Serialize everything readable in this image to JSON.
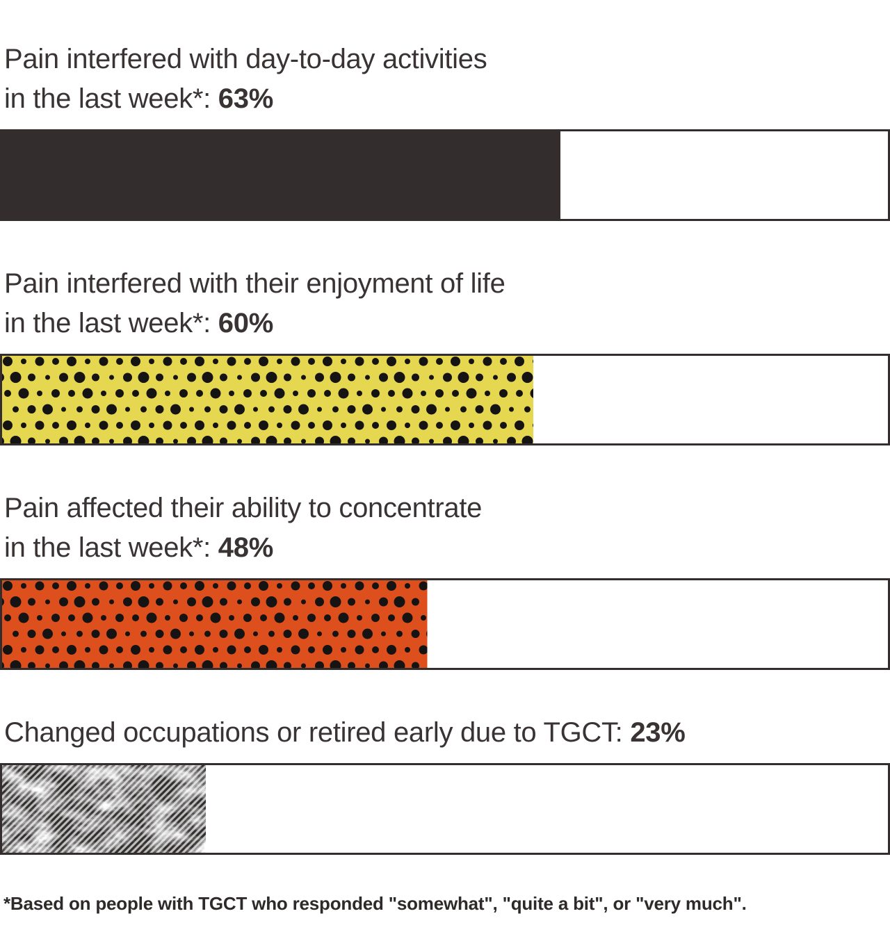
{
  "chart_data": {
    "type": "bar",
    "orientation": "horizontal",
    "value_unit": "%",
    "xlim": [
      0,
      100
    ],
    "grid": false,
    "legend": false,
    "dot_color": "#161313",
    "border_color": "#332d2d",
    "text_color": "#393334",
    "bars": [
      {
        "label_line1": "Pain interfered with day-to-day activities",
        "label_line2": "in the last week*: ",
        "value": 63,
        "value_label": "63%",
        "fill_style": "solid",
        "color": "#332d2d"
      },
      {
        "label_line1": "Pain interfered with their enjoyment of life",
        "label_line2": "in the last week*: ",
        "value": 60,
        "value_label": "60%",
        "fill_style": "halftone-dots",
        "color": "#e5d750"
      },
      {
        "label_line1": "Pain affected their ability to concentrate",
        "label_line2": "in the last week*: ",
        "value": 48,
        "value_label": "48%",
        "fill_style": "halftone-dots",
        "color": "#dd4f1d"
      },
      {
        "label_line1": "Changed occupations or retired early due to TGCT: ",
        "label_line2": "",
        "value": 23,
        "value_label": "23%",
        "fill_style": "grunge-hatch",
        "color": "#bdbdbd"
      }
    ],
    "hatch_line_color": "#322e2e",
    "footnote": "*Based on people with TGCT who responded \"somewhat\", \"quite a bit\", or \"very much\"."
  }
}
